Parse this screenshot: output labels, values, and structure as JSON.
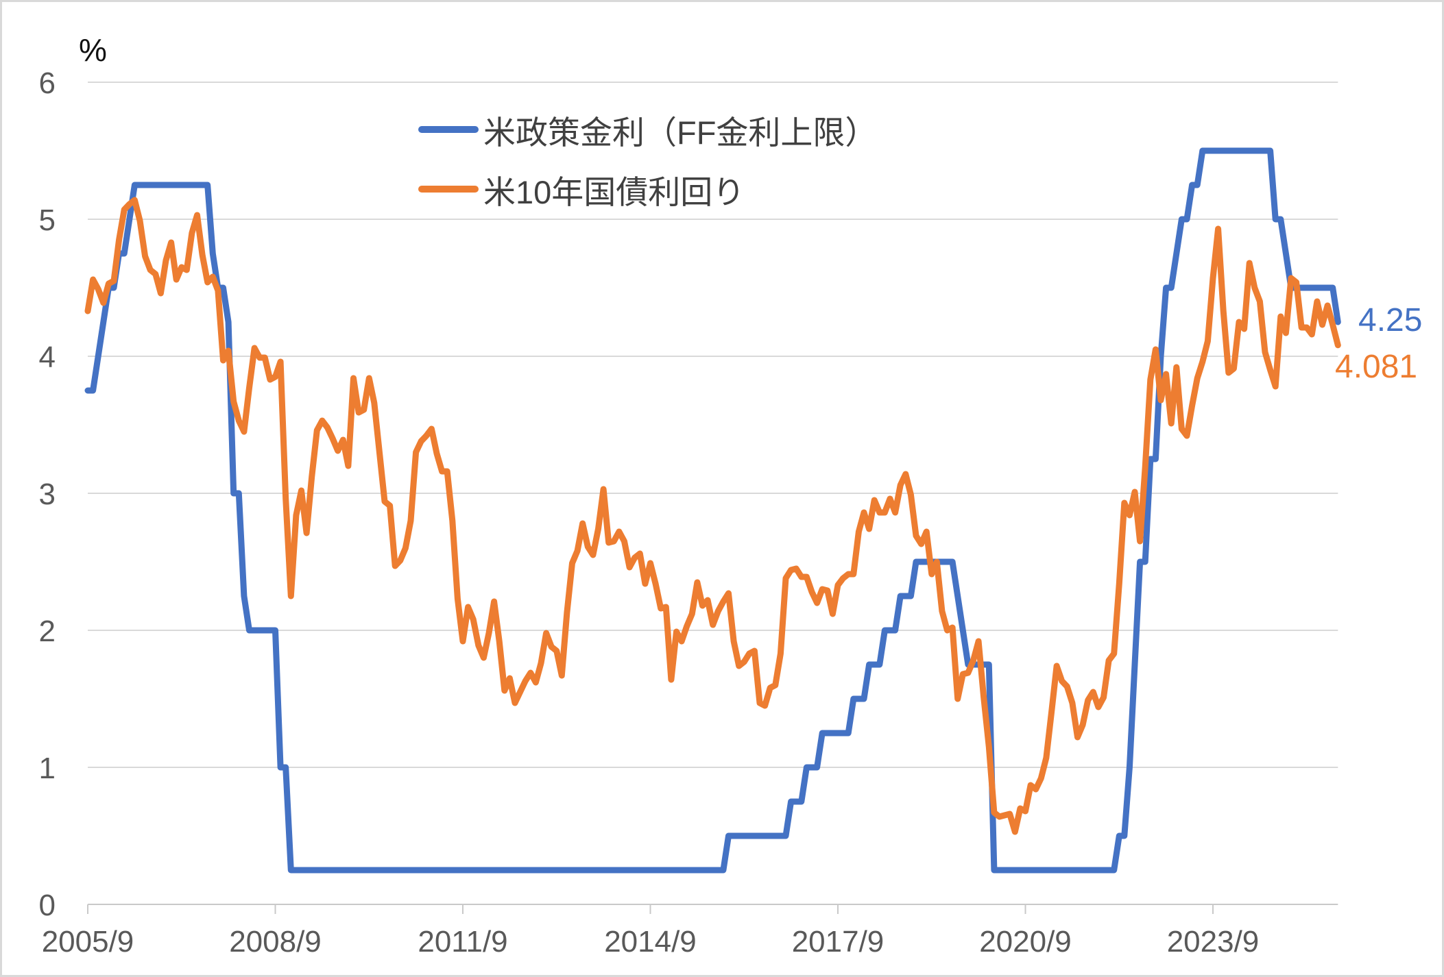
{
  "unit_label": "%",
  "chart_data": {
    "type": "line",
    "title": "",
    "ylabel": "%",
    "ylim": [
      0,
      6
    ],
    "y_ticks": [
      0,
      1,
      2,
      3,
      4,
      5,
      6
    ],
    "grid": "horizontal",
    "legend_position": "top-center-inside",
    "x_start": "2005/9",
    "x_frequency": "monthly",
    "x_tick_labels": [
      "2005/9",
      "2008/9",
      "2011/9",
      "2014/9",
      "2017/9",
      "2020/9",
      "2023/9"
    ],
    "x_tick_month_indices": [
      0,
      36,
      72,
      108,
      144,
      180,
      216
    ],
    "series": [
      {
        "name": "米政策金利（FF金利上限）",
        "slug": "policy-rate",
        "color": "#4472C4",
        "end_label": "4.25",
        "values": [
          3.75,
          3.75,
          4,
          4.25,
          4.5,
          4.5,
          4.75,
          4.75,
          5,
          5.25,
          5.25,
          5.25,
          5.25,
          5.25,
          5.25,
          5.25,
          5.25,
          5.25,
          5.25,
          5.25,
          5.25,
          5.25,
          5.25,
          5.25,
          4.75,
          4.5,
          4.5,
          4.25,
          3,
          3,
          2.25,
          2,
          2,
          2,
          2,
          2,
          2,
          1,
          1,
          0.25,
          0.25,
          0.25,
          0.25,
          0.25,
          0.25,
          0.25,
          0.25,
          0.25,
          0.25,
          0.25,
          0.25,
          0.25,
          0.25,
          0.25,
          0.25,
          0.25,
          0.25,
          0.25,
          0.25,
          0.25,
          0.25,
          0.25,
          0.25,
          0.25,
          0.25,
          0.25,
          0.25,
          0.25,
          0.25,
          0.25,
          0.25,
          0.25,
          0.25,
          0.25,
          0.25,
          0.25,
          0.25,
          0.25,
          0.25,
          0.25,
          0.25,
          0.25,
          0.25,
          0.25,
          0.25,
          0.25,
          0.25,
          0.25,
          0.25,
          0.25,
          0.25,
          0.25,
          0.25,
          0.25,
          0.25,
          0.25,
          0.25,
          0.25,
          0.25,
          0.25,
          0.25,
          0.25,
          0.25,
          0.25,
          0.25,
          0.25,
          0.25,
          0.25,
          0.25,
          0.25,
          0.25,
          0.25,
          0.25,
          0.25,
          0.25,
          0.25,
          0.25,
          0.25,
          0.25,
          0.25,
          0.25,
          0.25,
          0.25,
          0.5,
          0.5,
          0.5,
          0.5,
          0.5,
          0.5,
          0.5,
          0.5,
          0.5,
          0.5,
          0.5,
          0.5,
          0.75,
          0.75,
          0.75,
          1,
          1,
          1,
          1.25,
          1.25,
          1.25,
          1.25,
          1.25,
          1.25,
          1.5,
          1.5,
          1.5,
          1.75,
          1.75,
          1.75,
          2,
          2,
          2,
          2.25,
          2.25,
          2.25,
          2.5,
          2.5,
          2.5,
          2.5,
          2.5,
          2.5,
          2.5,
          2.5,
          2.25,
          2,
          1.75,
          1.75,
          1.75,
          1.75,
          1.75,
          0.25,
          0.25,
          0.25,
          0.25,
          0.25,
          0.25,
          0.25,
          0.25,
          0.25,
          0.25,
          0.25,
          0.25,
          0.25,
          0.25,
          0.25,
          0.25,
          0.25,
          0.25,
          0.25,
          0.25,
          0.25,
          0.25,
          0.25,
          0.25,
          0.5,
          0.5,
          1,
          1.75,
          2.5,
          2.5,
          3.25,
          3.25,
          4,
          4.5,
          4.5,
          4.75,
          5,
          5,
          5.25,
          5.25,
          5.5,
          5.5,
          5.5,
          5.5,
          5.5,
          5.5,
          5.5,
          5.5,
          5.5,
          5.5,
          5.5,
          5.5,
          5.5,
          5.5,
          5,
          5,
          4.75,
          4.5,
          4.5,
          4.5,
          4.5,
          4.5,
          4.5,
          4.5,
          4.5,
          4.5,
          4.25
        ]
      },
      {
        "name": "米10年国債利回り",
        "slug": "10y-yield",
        "color": "#ED7D31",
        "end_label": "4.081",
        "values": [
          4.33,
          4.56,
          4.49,
          4.39,
          4.53,
          4.55,
          4.85,
          5.07,
          5.11,
          5.14,
          4.99,
          4.73,
          4.63,
          4.6,
          4.46,
          4.7,
          4.83,
          4.56,
          4.65,
          4.63,
          4.9,
          5.03,
          4.74,
          4.54,
          4.58,
          4.48,
          3.97,
          4.04,
          3.67,
          3.53,
          3.45,
          3.77,
          4.06,
          3.99,
          3.99,
          3.83,
          3.85,
          3.96,
          2.96,
          2.25,
          2.84,
          3.02,
          2.71,
          3.12,
          3.46,
          3.53,
          3.48,
          3.4,
          3.31,
          3.39,
          3.2,
          3.84,
          3.59,
          3.61,
          3.84,
          3.66,
          3.3,
          2.94,
          2.91,
          2.47,
          2.51,
          2.6,
          2.8,
          3.3,
          3.38,
          3.42,
          3.47,
          3.29,
          3.16,
          3.16,
          2.8,
          2.23,
          1.92,
          2.17,
          2.08,
          1.89,
          1.8,
          1.98,
          2.21,
          1.92,
          1.56,
          1.65,
          1.47,
          1.55,
          1.63,
          1.69,
          1.62,
          1.76,
          1.98,
          1.88,
          1.85,
          1.67,
          2.13,
          2.49,
          2.58,
          2.78,
          2.61,
          2.55,
          2.74,
          3.03,
          2.64,
          2.65,
          2.72,
          2.65,
          2.46,
          2.53,
          2.56,
          2.34,
          2.49,
          2.34,
          2.16,
          2.17,
          1.64,
          1.99,
          1.92,
          2.03,
          2.12,
          2.35,
          2.18,
          2.22,
          2.04,
          2.14,
          2.21,
          2.27,
          1.92,
          1.74,
          1.77,
          1.83,
          1.85,
          1.47,
          1.45,
          1.58,
          1.6,
          1.83,
          2.38,
          2.44,
          2.45,
          2.39,
          2.39,
          2.28,
          2.2,
          2.3,
          2.29,
          2.12,
          2.33,
          2.38,
          2.41,
          2.41,
          2.72,
          2.86,
          2.74,
          2.95,
          2.86,
          2.86,
          2.96,
          2.86,
          3.06,
          3.14,
          2.99,
          2.69,
          2.63,
          2.72,
          2.41,
          2.5,
          2.14,
          2,
          2.02,
          1.5,
          1.68,
          1.69,
          1.78,
          1.92,
          1.51,
          1.15,
          0.67,
          0.64,
          0.65,
          0.66,
          0.53,
          0.7,
          0.68,
          0.87,
          0.84,
          0.92,
          1.07,
          1.4,
          1.74,
          1.63,
          1.59,
          1.47,
          1.22,
          1.31,
          1.49,
          1.55,
          1.44,
          1.51,
          1.78,
          1.83,
          2.34,
          2.93,
          2.84,
          3.01,
          2.65,
          3.19,
          3.83,
          4.05,
          3.68,
          3.87,
          3.51,
          3.92,
          3.47,
          3.42,
          3.64,
          3.84,
          3.96,
          4.11,
          4.57,
          4.93,
          4.33,
          3.88,
          3.91,
          4.25,
          4.2,
          4.68,
          4.5,
          4.4,
          4.03,
          3.9,
          3.78,
          4.29,
          4.17,
          4.57,
          4.54,
          4.21,
          4.21,
          4.16,
          4.4,
          4.23,
          4.37,
          4.23,
          4.081
        ]
      }
    ]
  }
}
